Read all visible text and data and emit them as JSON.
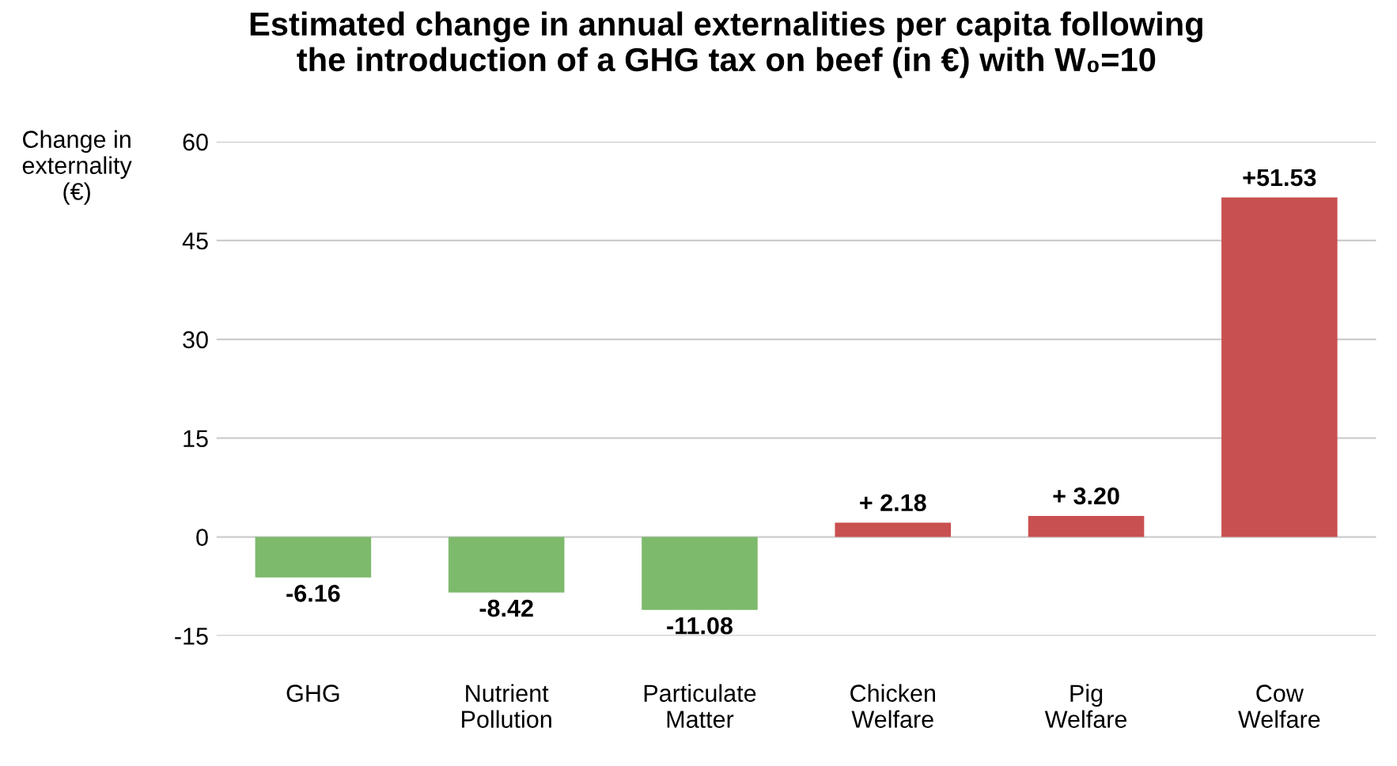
{
  "chart_data": {
    "type": "bar",
    "title": "Estimated change in annual externalities per capita following\nthe introduction of a GHG tax on beef (in €) with W₀=10",
    "ylabel": "Change in\nexternality\n(€)",
    "categories": [
      "GHG",
      "Nutrient\nPollution",
      "Particulate\nMatter",
      "Chicken\nWelfare",
      "Pig\nWelfare",
      "Cow\nWelfare"
    ],
    "values": [
      -6.16,
      -8.42,
      -11.08,
      2.18,
      3.2,
      51.53
    ],
    "colors": [
      "#7dba6c",
      "#7dba6c",
      "#7dba6c",
      "#c95050",
      "#c95050",
      "#c95050"
    ],
    "value_labels": [
      "-6.16",
      "-8.42",
      "-11.08",
      "+ 2.18",
      "+ 3.20",
      "+51.53"
    ],
    "ylim": [
      -15,
      60
    ],
    "yticks": [
      -15,
      0,
      15,
      30,
      45,
      60
    ],
    "grid": "y"
  }
}
